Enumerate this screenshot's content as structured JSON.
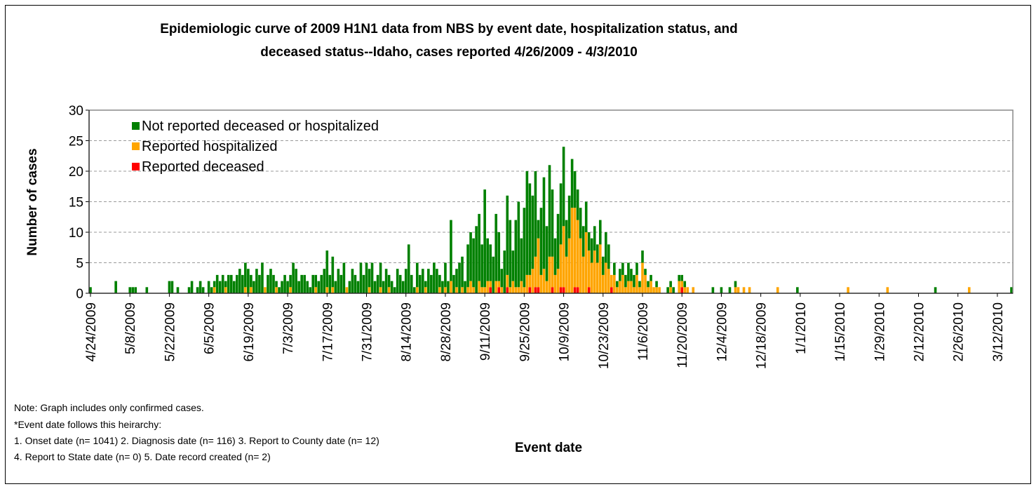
{
  "chart_data": {
    "type": "bar",
    "stacked": true,
    "title": "Epidemiologic curve of 2009 H1N1 data from NBS by event date, hospitalization status, and",
    "title_line2": "deceased status--Idaho, cases reported 4/26/2009 - 4/3/2010",
    "y_label": "Number of cases",
    "x_label": "Event date",
    "notes": [
      "Note: Graph includes only confirmed cases.",
      "*Event date follows this heirarchy:",
      "1. Onset date (n= 1041) 2. Diagnosis date (n= 116) 3. Report to County date (n= 12)",
      "4. Report to State date (n= 0) 5. Date record created (n= 2)"
    ],
    "ylim": [
      0,
      30
    ],
    "yticks": [
      0,
      5,
      10,
      15,
      20,
      25,
      30
    ],
    "grid": true,
    "legend": "upper left",
    "categories": [
      "4/24/2009",
      null,
      null,
      null,
      null,
      null,
      null,
      null,
      null,
      null,
      null,
      null,
      null,
      null,
      "5/8/2009",
      null,
      null,
      null,
      null,
      null,
      null,
      null,
      null,
      null,
      null,
      null,
      null,
      null,
      "5/22/2009",
      null,
      null,
      null,
      null,
      null,
      null,
      null,
      null,
      null,
      null,
      null,
      null,
      null,
      "6/5/2009",
      null,
      null,
      null,
      null,
      null,
      null,
      null,
      null,
      null,
      null,
      null,
      null,
      null,
      "6/19/2009",
      null,
      null,
      null,
      null,
      null,
      null,
      null,
      null,
      null,
      null,
      null,
      null,
      null,
      "7/3/2009",
      null,
      null,
      null,
      null,
      null,
      null,
      null,
      null,
      null,
      null,
      null,
      null,
      null,
      "7/17/2009",
      null,
      null,
      null,
      null,
      null,
      null,
      null,
      null,
      null,
      null,
      null,
      null,
      null,
      "7/31/2009",
      null,
      null,
      null,
      null,
      null,
      null,
      null,
      null,
      null,
      null,
      null,
      null,
      null,
      "8/14/2009",
      null,
      null,
      null,
      null,
      null,
      null,
      null,
      null,
      null,
      null,
      null,
      null,
      null,
      "8/28/2009",
      null,
      null,
      null,
      null,
      null,
      null,
      null,
      null,
      null,
      null,
      null,
      null,
      null,
      "9/11/2009",
      null,
      null,
      null,
      null,
      null,
      null,
      null,
      null,
      null,
      null,
      null,
      null,
      null,
      "9/25/2009",
      null,
      null,
      null,
      null,
      null,
      null,
      null,
      null,
      null,
      null,
      null,
      null,
      null,
      "10/9/2009",
      null,
      null,
      null,
      null,
      null,
      null,
      null,
      null,
      null,
      null,
      null,
      null,
      null,
      "10/23/2009",
      null,
      null,
      null,
      null,
      null,
      null,
      null,
      null,
      null,
      null,
      null,
      null,
      null,
      "11/6/2009",
      null,
      null,
      null,
      null,
      null,
      null,
      null,
      null,
      null,
      null,
      null,
      null,
      null,
      "11/20/2009",
      null,
      null,
      null,
      null,
      null,
      null,
      null,
      null,
      null,
      null,
      null,
      null,
      null,
      "12/4/2009",
      null,
      null,
      null,
      null,
      null,
      null,
      null,
      null,
      null,
      null,
      null,
      null,
      null,
      "12/18/2009",
      null,
      null,
      null,
      null,
      null,
      null,
      null,
      null,
      null,
      null,
      null,
      null,
      null,
      "1/1/2010",
      null,
      null,
      null,
      null,
      null,
      null,
      null,
      null,
      null,
      null,
      null,
      null,
      null,
      "1/15/2010",
      null,
      null,
      null,
      null,
      null,
      null,
      null,
      null,
      null,
      null,
      null,
      null,
      null,
      "1/29/2010",
      null,
      null,
      null,
      null,
      null,
      null,
      null,
      null,
      null,
      null,
      null,
      null,
      null,
      "2/12/2010",
      null,
      null,
      null,
      null,
      null,
      null,
      null,
      null,
      null,
      null,
      null,
      null,
      null,
      "2/26/2010",
      null,
      null,
      null,
      null,
      null,
      null,
      null,
      null,
      null,
      null,
      null,
      null,
      null,
      "3/12/2010",
      null,
      null,
      null,
      null,
      null
    ],
    "series": [
      {
        "name": "Not reported deceased or hospitalized",
        "color": "#008000",
        "values": [
          1,
          0,
          0,
          0,
          0,
          0,
          0,
          0,
          0,
          2,
          0,
          0,
          0,
          0,
          1,
          1,
          1,
          0,
          0,
          0,
          1,
          0,
          0,
          0,
          0,
          0,
          0,
          0,
          2,
          2,
          0,
          1,
          0,
          0,
          0,
          1,
          2,
          0,
          1,
          2,
          1,
          0,
          2,
          1,
          1,
          3,
          2,
          3,
          1,
          3,
          3,
          2,
          3,
          4,
          3,
          4,
          4,
          2,
          2,
          4,
          3,
          5,
          0,
          3,
          4,
          3,
          1,
          1,
          2,
          3,
          2,
          2,
          5,
          4,
          2,
          3,
          3,
          2,
          1,
          3,
          2,
          2,
          3,
          4,
          6,
          3,
          5,
          2,
          4,
          3,
          5,
          0,
          2,
          4,
          3,
          2,
          5,
          3,
          5,
          3,
          5,
          2,
          3,
          4,
          2,
          4,
          2,
          2,
          1,
          4,
          3,
          2,
          4,
          8,
          3,
          1,
          4,
          3,
          4,
          1,
          4,
          3,
          5,
          4,
          2,
          2,
          4,
          2,
          10,
          3,
          3,
          5,
          5,
          2,
          7,
          8,
          8,
          11,
          11,
          7,
          16,
          7,
          6,
          6,
          11,
          8,
          3,
          7,
          13,
          11,
          5,
          11,
          14,
          7,
          13,
          17,
          15,
          12,
          14,
          3,
          11,
          15,
          9,
          15,
          11,
          6,
          9,
          10,
          13,
          6,
          7,
          8,
          6,
          5,
          5,
          5,
          5,
          3,
          4,
          4,
          3,
          4,
          3,
          5,
          4,
          0,
          2,
          1,
          2,
          2,
          2,
          3,
          2,
          2,
          2,
          1,
          2,
          1,
          1,
          1,
          0,
          1,
          0,
          0,
          0,
          1,
          1,
          1,
          0,
          1,
          1,
          1,
          0,
          0,
          0,
          0,
          0,
          0,
          0,
          0,
          0,
          1,
          0,
          0,
          1,
          0,
          0,
          1,
          0,
          1,
          0,
          0,
          0,
          0,
          0,
          0,
          0,
          0,
          0,
          0,
          0,
          0,
          0,
          0,
          0,
          0,
          0,
          0,
          0,
          0,
          0,
          1,
          0,
          0,
          0,
          0,
          0,
          0,
          0,
          0,
          0,
          0,
          0,
          0,
          0,
          0,
          0,
          0,
          0,
          0,
          0,
          0,
          0,
          0,
          0,
          0,
          0,
          0,
          0,
          0,
          0,
          0,
          0,
          0,
          0,
          0,
          0,
          0,
          0,
          0,
          0,
          0,
          0,
          0,
          0,
          0,
          0,
          0,
          0,
          0,
          1,
          0,
          0,
          0,
          0,
          0,
          0,
          0,
          0,
          0,
          0,
          0,
          0,
          0,
          0,
          0,
          0,
          0,
          0,
          0,
          0,
          0,
          0,
          0,
          0,
          0,
          0,
          1
        ]
      },
      {
        "name": "Reported hospitalized",
        "color": "#ffa500",
        "values": [
          0,
          0,
          0,
          0,
          0,
          0,
          0,
          0,
          0,
          0,
          0,
          0,
          0,
          0,
          0,
          0,
          0,
          0,
          0,
          0,
          0,
          0,
          0,
          0,
          0,
          0,
          0,
          0,
          0,
          0,
          0,
          0,
          0,
          0,
          0,
          0,
          0,
          0,
          0,
          0,
          0,
          0,
          0,
          0,
          1,
          0,
          0,
          0,
          1,
          0,
          0,
          0,
          0,
          0,
          0,
          1,
          0,
          1,
          0,
          0,
          0,
          0,
          1,
          0,
          0,
          0,
          1,
          0,
          0,
          0,
          0,
          1,
          0,
          0,
          0,
          0,
          0,
          0,
          0,
          0,
          1,
          0,
          0,
          0,
          1,
          0,
          1,
          0,
          0,
          0,
          0,
          1,
          0,
          0,
          0,
          0,
          0,
          0,
          0,
          1,
          0,
          0,
          0,
          1,
          0,
          0,
          1,
          0,
          0,
          0,
          0,
          0,
          0,
          0,
          0,
          0,
          1,
          0,
          0,
          1,
          0,
          0,
          0,
          0,
          1,
          0,
          1,
          0,
          2,
          0,
          1,
          0,
          1,
          0,
          1,
          2,
          1,
          0,
          2,
          1,
          1,
          2,
          1,
          0,
          2,
          1,
          1,
          0,
          2,
          1,
          2,
          1,
          1,
          2,
          1,
          3,
          2,
          4,
          5,
          8,
          3,
          4,
          2,
          6,
          5,
          3,
          4,
          7,
          10,
          6,
          9,
          14,
          13,
          11,
          9,
          6,
          10,
          6,
          5,
          7,
          5,
          8,
          3,
          5,
          4,
          2,
          3,
          1,
          2,
          3,
          1,
          2,
          2,
          1,
          3,
          1,
          5,
          3,
          1,
          2,
          1,
          1,
          1,
          0,
          0,
          0,
          1,
          0,
          0,
          2,
          1,
          1,
          1,
          0,
          1,
          0,
          0,
          0,
          0,
          0,
          0,
          0,
          0,
          0,
          0,
          0,
          0,
          0,
          0,
          1,
          1,
          0,
          1,
          0,
          1,
          0,
          0,
          0,
          0,
          0,
          0,
          0,
          0,
          0,
          1,
          0,
          0,
          0,
          0,
          0,
          0,
          0,
          0,
          0,
          0,
          0,
          0,
          0,
          0,
          0,
          0,
          0,
          0,
          0,
          0,
          0,
          0,
          0,
          0,
          1,
          0,
          0,
          0,
          0,
          0,
          0,
          0,
          0,
          0,
          0,
          0,
          0,
          0,
          1,
          0,
          0,
          0,
          0,
          0,
          0,
          0,
          0,
          0,
          0,
          0,
          0,
          0,
          0,
          0,
          0,
          0,
          0,
          0,
          0,
          0,
          0,
          0,
          0,
          0,
          0,
          0,
          0,
          1,
          0,
          0,
          0,
          0,
          0,
          0,
          0,
          0,
          0,
          0,
          0,
          0,
          0,
          0,
          0
        ]
      },
      {
        "name": "Reported deceased",
        "color": "#ff0000",
        "values": [
          0,
          0,
          0,
          0,
          0,
          0,
          0,
          0,
          0,
          0,
          0,
          0,
          0,
          0,
          0,
          0,
          0,
          0,
          0,
          0,
          0,
          0,
          0,
          0,
          0,
          0,
          0,
          0,
          0,
          0,
          0,
          0,
          0,
          0,
          0,
          0,
          0,
          0,
          0,
          0,
          0,
          0,
          0,
          0,
          0,
          0,
          0,
          0,
          0,
          0,
          0,
          0,
          0,
          0,
          0,
          0,
          0,
          0,
          0,
          0,
          0,
          0,
          0,
          0,
          0,
          0,
          0,
          0,
          0,
          0,
          0,
          0,
          0,
          0,
          0,
          0,
          0,
          0,
          0,
          0,
          0,
          0,
          0,
          0,
          0,
          0,
          0,
          0,
          0,
          0,
          0,
          0,
          0,
          0,
          0,
          0,
          0,
          0,
          0,
          0,
          0,
          0,
          0,
          0,
          0,
          0,
          0,
          0,
          0,
          0,
          0,
          0,
          0,
          0,
          0,
          0,
          0,
          0,
          0,
          0,
          0,
          0,
          0,
          0,
          0,
          0,
          0,
          0,
          0,
          0,
          0,
          0,
          0,
          0,
          0,
          0,
          0,
          0,
          0,
          0,
          0,
          0,
          1,
          0,
          0,
          1,
          0,
          0,
          1,
          0,
          0,
          0,
          0,
          0,
          0,
          0,
          1,
          0,
          1,
          1,
          0,
          0,
          0,
          0,
          1,
          0,
          0,
          1,
          1,
          0,
          0,
          0,
          1,
          1,
          0,
          0,
          0,
          1,
          0,
          0,
          0,
          0,
          0,
          0,
          0,
          1,
          0,
          0,
          0,
          0,
          0,
          0,
          0,
          0,
          0,
          0,
          0,
          0,
          0,
          0,
          0,
          0,
          0,
          0,
          0,
          0,
          0,
          0,
          0,
          0,
          1,
          0,
          0,
          0,
          0,
          0,
          0,
          0,
          0,
          0,
          0,
          0,
          0,
          0,
          0,
          0,
          0,
          0,
          0,
          0,
          0,
          0,
          0,
          0,
          0,
          0,
          0,
          0,
          0,
          0,
          0,
          0,
          0,
          0,
          0,
          0,
          0,
          0,
          0,
          0,
          0,
          0,
          0,
          0,
          0,
          0,
          0,
          0,
          0,
          0,
          0,
          0,
          0,
          0,
          0,
          0,
          0,
          0,
          0,
          0,
          0,
          0,
          0,
          0,
          0,
          0,
          0,
          0,
          0,
          0,
          0,
          0,
          0,
          0,
          0,
          0,
          0,
          0,
          0,
          0,
          0,
          0,
          0,
          0,
          0,
          0,
          0,
          0,
          0,
          0,
          0,
          0,
          0,
          0,
          0,
          0,
          0,
          0,
          0,
          0,
          0,
          0,
          0,
          0,
          0,
          0,
          0,
          0,
          0,
          0,
          0,
          0,
          0,
          0,
          0,
          0,
          0,
          0
        ]
      }
    ]
  }
}
